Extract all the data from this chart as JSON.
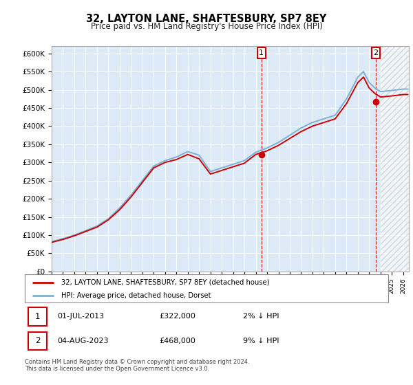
{
  "title": "32, LAYTON LANE, SHAFTESBURY, SP7 8EY",
  "subtitle": "Price paid vs. HM Land Registry's House Price Index (HPI)",
  "ylim": [
    0,
    620000
  ],
  "hpi_color": "#7ab0d4",
  "price_color": "#cc0000",
  "sale1_t": 2013.5,
  "sale1_v": 322000,
  "sale2_t": 2023.583,
  "sale2_v": 468000,
  "legend_label1": "32, LAYTON LANE, SHAFTESBURY, SP7 8EY (detached house)",
  "legend_label2": "HPI: Average price, detached house, Dorset",
  "note1_label": "1",
  "note1_date": "01-JUL-2013",
  "note1_price": "£322,000",
  "note1_hpi": "2% ↓ HPI",
  "note2_label": "2",
  "note2_date": "04-AUG-2023",
  "note2_price": "£468,000",
  "note2_hpi": "9% ↓ HPI",
  "footer": "Contains HM Land Registry data © Crown copyright and database right 2024.\nThis data is licensed under the Open Government Licence v3.0.",
  "bg_color": "#dce9f7",
  "hatch_start": 2024.0,
  "xmin": 1995,
  "xmax": 2026.5,
  "hpi_knots_t": [
    1995,
    1996,
    1997,
    1998,
    1999,
    2000,
    2001,
    2002,
    2003,
    2004,
    2005,
    2006,
    2007,
    2008,
    2009,
    2010,
    2011,
    2012,
    2013,
    2014,
    2015,
    2016,
    2017,
    2018,
    2019,
    2020,
    2021,
    2022,
    2022.5,
    2023,
    2023.5,
    2024,
    2025,
    2026
  ],
  "hpi_knots_v": [
    82000,
    90000,
    100000,
    112000,
    125000,
    145000,
    175000,
    210000,
    250000,
    290000,
    305000,
    315000,
    330000,
    320000,
    275000,
    285000,
    295000,
    305000,
    328000,
    340000,
    355000,
    375000,
    395000,
    410000,
    420000,
    430000,
    475000,
    535000,
    550000,
    520000,
    505000,
    495000,
    498000,
    502000
  ],
  "price_knots_t": [
    1995,
    1996,
    1997,
    1998,
    1999,
    2000,
    2001,
    2002,
    2003,
    2004,
    2005,
    2006,
    2007,
    2008,
    2009,
    2010,
    2011,
    2012,
    2013,
    2014,
    2015,
    2016,
    2017,
    2018,
    2019,
    2020,
    2021,
    2022,
    2022.5,
    2023,
    2023.5,
    2024,
    2025,
    2026
  ],
  "price_knots_v": [
    80000,
    88000,
    98000,
    110000,
    122000,
    142000,
    170000,
    205000,
    245000,
    285000,
    300000,
    308000,
    322000,
    310000,
    268000,
    278000,
    288000,
    298000,
    322000,
    332000,
    347000,
    366000,
    385000,
    400000,
    410000,
    420000,
    462000,
    520000,
    535000,
    505000,
    490000,
    480000,
    483000,
    487000
  ]
}
